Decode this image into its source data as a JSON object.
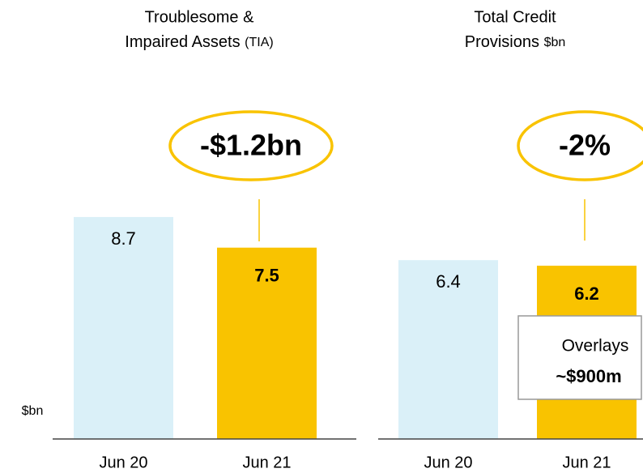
{
  "chart_data": [
    {
      "type": "bar",
      "title_lines": [
        "Troublesome &",
        "Impaired Assets"
      ],
      "title_unit": "(TIA)",
      "ylabel": "$bn",
      "categories": [
        "Jun 20",
        "Jun 21"
      ],
      "values": [
        8.7,
        7.5
      ],
      "colors": [
        "#daf0f8",
        "#f9c300"
      ],
      "annotation": "-$1.2bn"
    },
    {
      "type": "bar",
      "title_lines": [
        "Total Credit",
        "Provisions"
      ],
      "title_unit": "$bn",
      "categories": [
        "Jun 20",
        "Jun 21"
      ],
      "values": [
        6.4,
        6.2
      ],
      "colors": [
        "#daf0f8",
        "#f9c300"
      ],
      "annotation": "-2%",
      "box_lines": [
        "Overlays",
        "~$900m"
      ]
    }
  ]
}
